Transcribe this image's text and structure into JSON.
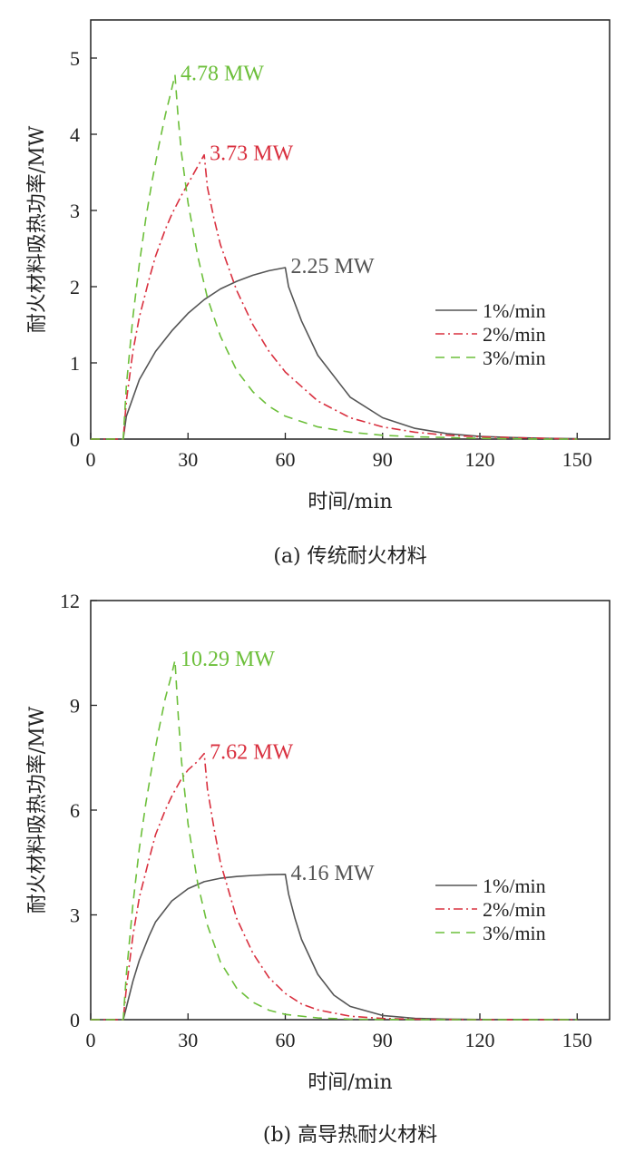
{
  "colors": {
    "s1": "#555555",
    "s2": "#d9303f",
    "s3": "#6cbf3a"
  },
  "chart_data": [
    {
      "type": "line",
      "caption": "(a) 传统耐火材料",
      "xlabel": "时间/min",
      "ylabel": "耐火材料吸热功率/MW",
      "xlim": [
        0,
        160
      ],
      "ylim": [
        0,
        5.5
      ],
      "xticks": [
        0,
        30,
        60,
        90,
        120,
        150
      ],
      "yticks": [
        0,
        1,
        2,
        3,
        4,
        5
      ],
      "legend": "center-right",
      "series": [
        {
          "name": "1%/min",
          "color_key": "s1",
          "style": "solid",
          "x": [
            0,
            10,
            11,
            15,
            20,
            25,
            30,
            35,
            40,
            45,
            50,
            55,
            60,
            61,
            65,
            70,
            80,
            90,
            100,
            110,
            120,
            130,
            140,
            150
          ],
          "y": [
            0,
            0,
            0.3,
            0.78,
            1.15,
            1.42,
            1.65,
            1.83,
            1.97,
            2.07,
            2.15,
            2.21,
            2.25,
            2.0,
            1.55,
            1.1,
            0.55,
            0.28,
            0.14,
            0.07,
            0.035,
            0.02,
            0.01,
            0.005
          ]
        },
        {
          "name": "2%/min",
          "color_key": "s2",
          "style": "dashdot",
          "x": [
            0,
            10,
            11,
            13,
            15,
            18,
            20,
            23,
            25,
            28,
            30,
            33,
            35,
            36,
            38,
            40,
            45,
            50,
            55,
            60,
            70,
            80,
            90,
            100,
            110,
            120,
            140,
            150
          ],
          "y": [
            0,
            0,
            0.5,
            1.15,
            1.6,
            2.1,
            2.4,
            2.75,
            2.95,
            3.2,
            3.35,
            3.58,
            3.73,
            3.3,
            2.9,
            2.55,
            1.95,
            1.5,
            1.15,
            0.88,
            0.5,
            0.28,
            0.16,
            0.09,
            0.05,
            0.03,
            0.01,
            0.0
          ]
        },
        {
          "name": "3%/min",
          "color_key": "s3",
          "style": "dashed",
          "x": [
            0,
            10,
            11,
            13,
            15,
            17,
            19,
            21,
            23,
            25,
            26,
            27,
            28,
            30,
            33,
            36,
            40,
            45,
            50,
            55,
            60,
            70,
            80,
            90,
            100,
            110,
            120,
            140,
            150
          ],
          "y": [
            0,
            0,
            0.7,
            1.6,
            2.3,
            2.9,
            3.4,
            3.85,
            4.25,
            4.6,
            4.78,
            4.2,
            3.75,
            3.1,
            2.4,
            1.85,
            1.35,
            0.9,
            0.62,
            0.43,
            0.3,
            0.16,
            0.09,
            0.05,
            0.03,
            0.02,
            0.01,
            0.0,
            0.0
          ]
        }
      ],
      "annotations": [
        {
          "text": "4.78 MW",
          "x": 26,
          "y": 4.78,
          "color_key": "s3"
        },
        {
          "text": "3.73 MW",
          "x": 35,
          "y": 3.73,
          "color_key": "s2"
        },
        {
          "text": "2.25 MW",
          "x": 60,
          "y": 2.25,
          "color_key": "s1"
        }
      ]
    },
    {
      "type": "line",
      "caption": "(b) 高导热耐火材料",
      "xlabel": "时间/min",
      "ylabel": "耐火材料吸热功率/MW",
      "xlim": [
        0,
        160
      ],
      "ylim": [
        0,
        12
      ],
      "xticks": [
        0,
        30,
        60,
        90,
        120,
        150
      ],
      "yticks": [
        0,
        3,
        6,
        9,
        12
      ],
      "legend": "center-right",
      "series": [
        {
          "name": "1%/min",
          "color_key": "s1",
          "style": "solid",
          "x": [
            0,
            10,
            11,
            13,
            15,
            18,
            20,
            25,
            30,
            35,
            40,
            45,
            50,
            55,
            60,
            61,
            63,
            65,
            70,
            75,
            80,
            90,
            100,
            110,
            120,
            150
          ],
          "y": [
            0,
            0,
            0.35,
            1.1,
            1.7,
            2.4,
            2.8,
            3.4,
            3.75,
            3.95,
            4.05,
            4.1,
            4.13,
            4.15,
            4.16,
            3.6,
            2.9,
            2.3,
            1.3,
            0.7,
            0.38,
            0.12,
            0.04,
            0.015,
            0.005,
            0.0
          ]
        },
        {
          "name": "2%/min",
          "color_key": "s2",
          "style": "dashdot",
          "x": [
            0,
            10,
            11,
            13,
            15,
            18,
            20,
            23,
            25,
            28,
            30,
            33,
            35,
            36,
            38,
            40,
            45,
            50,
            55,
            60,
            65,
            70,
            80,
            90,
            100,
            120,
            150
          ],
          "y": [
            0,
            0,
            0.9,
            2.4,
            3.5,
            4.6,
            5.3,
            6.0,
            6.4,
            6.9,
            7.15,
            7.4,
            7.62,
            6.6,
            5.5,
            4.5,
            2.9,
            1.9,
            1.2,
            0.75,
            0.45,
            0.28,
            0.1,
            0.035,
            0.012,
            0.0,
            0.0
          ]
        },
        {
          "name": "3%/min",
          "color_key": "s3",
          "style": "dashed",
          "x": [
            0,
            10,
            11,
            13,
            15,
            17,
            19,
            21,
            23,
            25,
            26,
            27,
            28,
            30,
            33,
            36,
            40,
            45,
            50,
            55,
            60,
            70,
            80,
            90,
            100,
            120,
            150
          ],
          "y": [
            0,
            0,
            1.3,
            3.3,
            4.9,
            6.2,
            7.3,
            8.3,
            9.2,
            9.9,
            10.29,
            8.7,
            7.4,
            5.6,
            3.9,
            2.7,
            1.65,
            0.9,
            0.5,
            0.27,
            0.15,
            0.05,
            0.015,
            0.005,
            0.0,
            0.0,
            0.0
          ]
        }
      ],
      "annotations": [
        {
          "text": "10.29 MW",
          "x": 26,
          "y": 10.29,
          "color_key": "s3"
        },
        {
          "text": "7.62 MW",
          "x": 35,
          "y": 7.62,
          "color_key": "s2"
        },
        {
          "text": "4.16 MW",
          "x": 60,
          "y": 4.16,
          "color_key": "s1"
        }
      ]
    }
  ]
}
